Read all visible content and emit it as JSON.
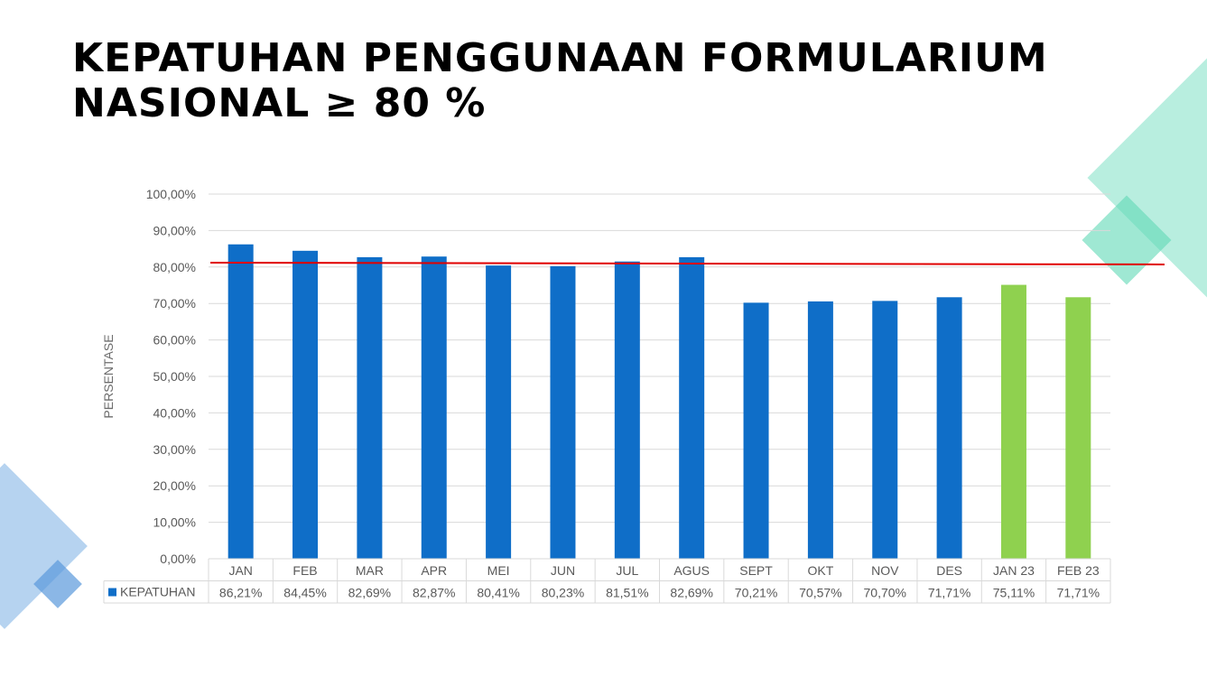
{
  "slide": {
    "title_line1": "KEPATUHAN PENGGUNAAN FORMULARIUM",
    "title_line2": "NASIONAL ≥  80 %"
  },
  "colors": {
    "bar_primary": "#0f6ec8",
    "bar_highlight": "#8fd14f",
    "target_line": "#e00000",
    "deco_teal": "#7ee0c4",
    "deco_blue": "#7aaee3"
  },
  "chart_data": {
    "type": "bar",
    "ylabel": "PERSENTASE",
    "ylim": [
      0,
      100
    ],
    "yticks": [
      "0,00%",
      "10,00%",
      "20,00%",
      "30,00%",
      "40,00%",
      "50,00%",
      "60,00%",
      "70,00%",
      "80,00%",
      "90,00%",
      "100,00%"
    ],
    "categories": [
      "JAN",
      "FEB",
      "MAR",
      "APR",
      "MEI",
      "JUN",
      "JUL",
      "AGUS",
      "SEPT",
      "OKT",
      "NOV",
      "DES",
      "JAN 23",
      "FEB 23"
    ],
    "series": [
      {
        "name": "KEPATUHAN",
        "values": [
          86.21,
          84.45,
          82.69,
          82.87,
          80.41,
          80.23,
          81.51,
          82.69,
          70.21,
          70.57,
          70.7,
          71.71,
          75.11,
          71.71
        ],
        "labels": [
          "86,21%",
          "84,45%",
          "82,69%",
          "82,87%",
          "80,41%",
          "80,23%",
          "81,51%",
          "82,69%",
          "70,21%",
          "70,57%",
          "70,70%",
          "71,71%",
          "75,11%",
          "71,71%"
        ]
      }
    ],
    "highlighted_categories": [
      "JAN 23",
      "FEB 23"
    ],
    "target_line": {
      "start_value": 81.2,
      "end_value": 80.7
    },
    "legend": "data-table",
    "grid": true
  }
}
